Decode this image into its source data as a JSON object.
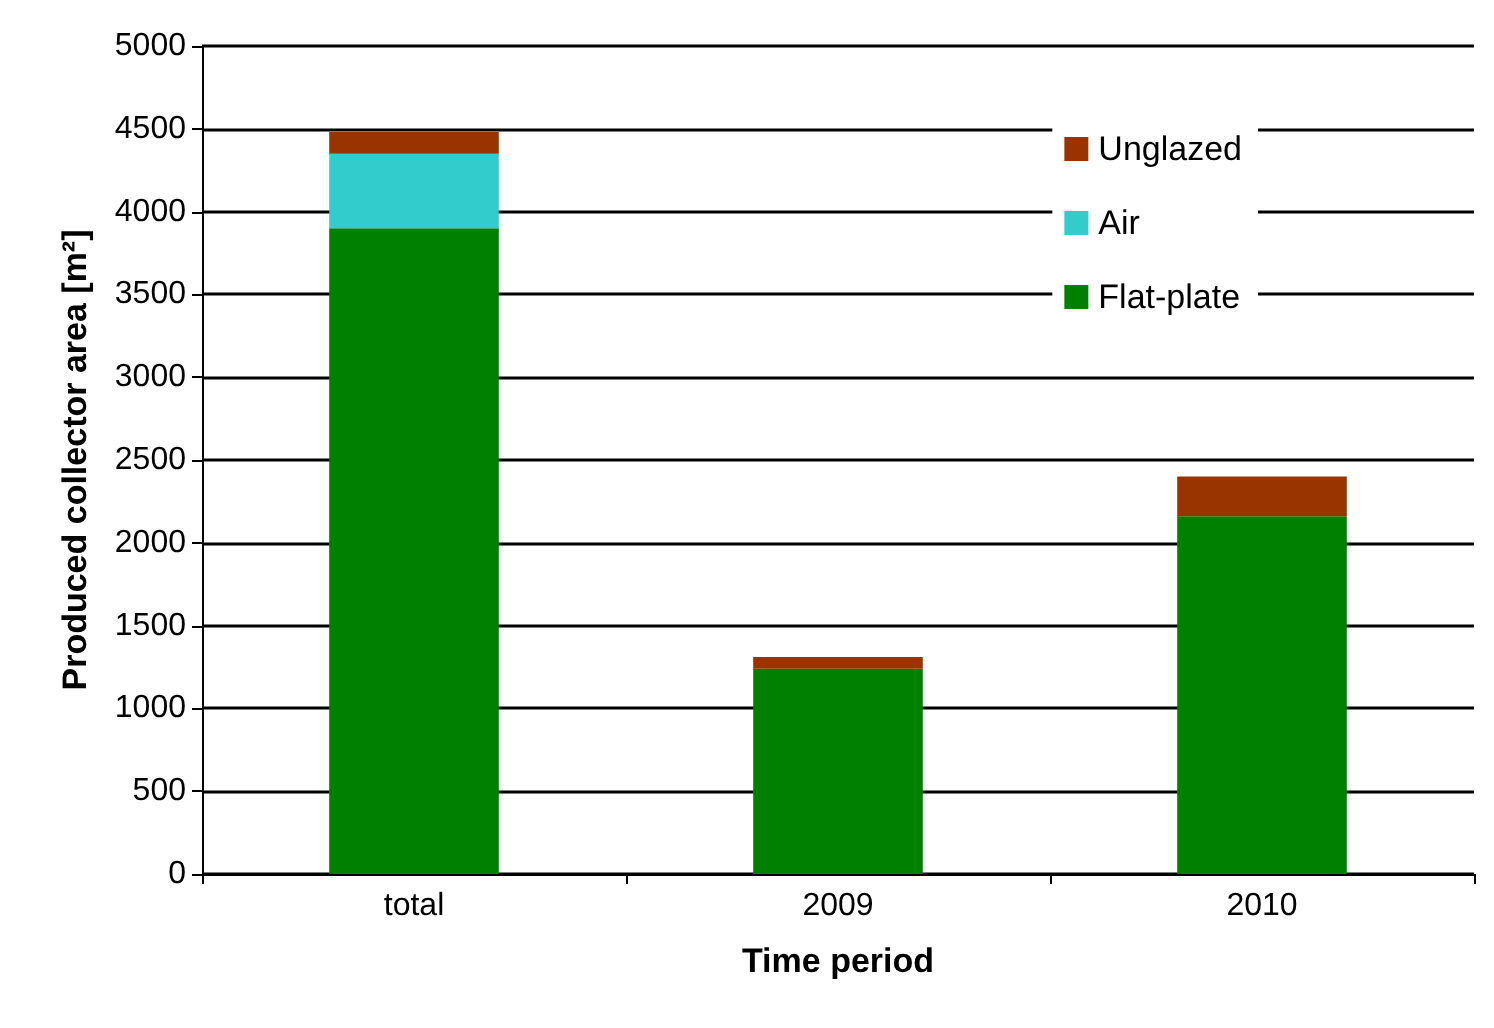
{
  "chart_data": {
    "type": "bar",
    "stacked": true,
    "xlabel": "Time period",
    "ylabel": "Produced collector area [m²]",
    "categories": [
      "total",
      "2009",
      "2010"
    ],
    "series": [
      {
        "name": "Flat-plate",
        "color": "#008000",
        "values": [
          3900,
          1240,
          2160
        ]
      },
      {
        "name": "Air",
        "color": "#33cccc",
        "values": [
          450,
          0,
          0
        ]
      },
      {
        "name": "Unglazed",
        "color": "#993300",
        "values": [
          130,
          70,
          240
        ]
      }
    ],
    "ylim": [
      0,
      5000
    ],
    "yticks": [
      0,
      500,
      1000,
      1500,
      2000,
      2500,
      3000,
      3500,
      4000,
      4500,
      5000
    ],
    "grid": "y",
    "legend": "top right"
  }
}
